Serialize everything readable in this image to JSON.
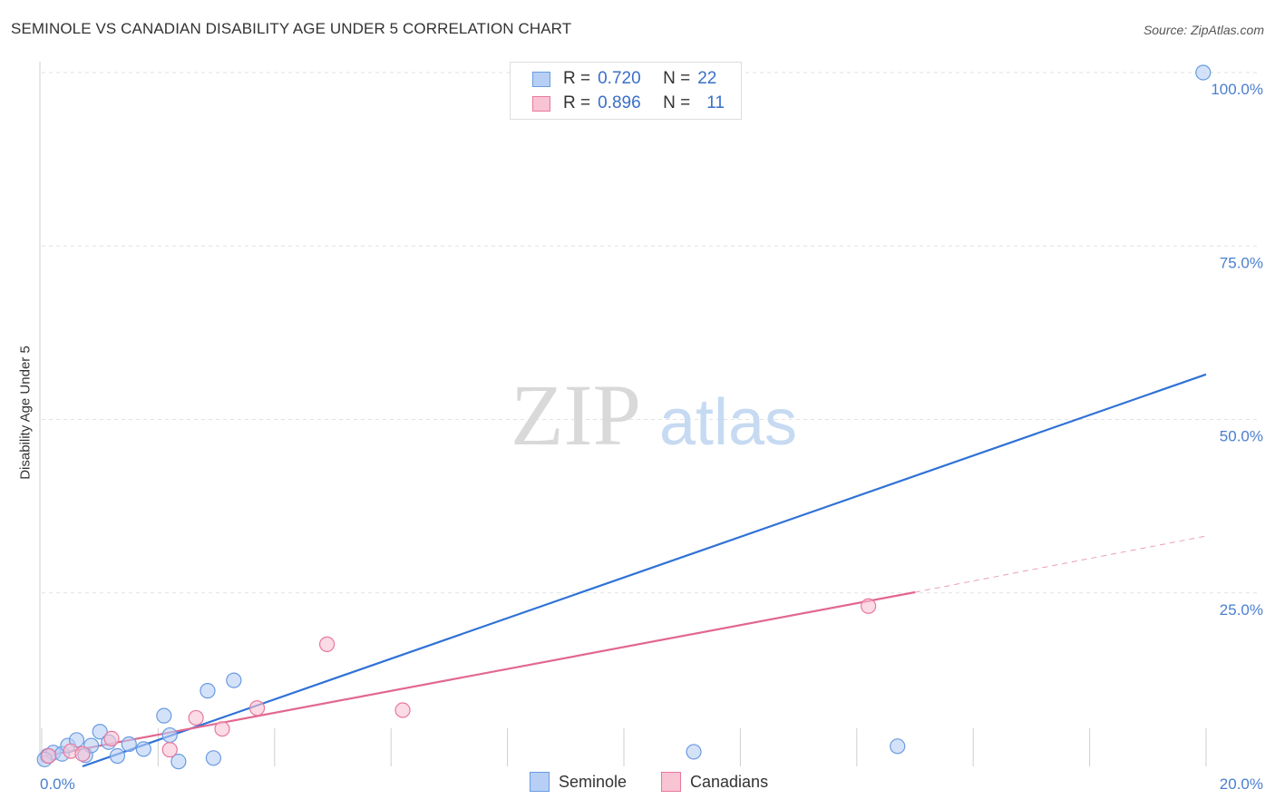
{
  "chart_data": {
    "type": "scatter",
    "title": "SEMINOLE VS CANADIAN DISABILITY AGE UNDER 5 CORRELATION CHART",
    "source": "Source: ZipAtlas.com",
    "xlabel": "",
    "ylabel": "Disability Age Under 5",
    "xlim": [
      0,
      20
    ],
    "ylim": [
      0,
      100
    ],
    "x_tick_labels": [
      "0.0%",
      "20.0%"
    ],
    "y_tick_labels": [
      "100.0%",
      "75.0%",
      "50.0%",
      "25.0%"
    ],
    "y_ticks": [
      100,
      75,
      50,
      25
    ],
    "watermark": {
      "zip": "ZIP",
      "atlas": "atlas"
    },
    "legend": {
      "r_label": "R =",
      "n_label": "N =",
      "rows": [
        {
          "name": "Seminole",
          "r": "0.720",
          "n": "22"
        },
        {
          "name": "Canadians",
          "r": "0.896",
          "n": "11"
        }
      ]
    },
    "series": [
      {
        "name": "Seminole",
        "color": "#6a9be0",
        "fill": "#b7cff5",
        "trend": {
          "x0": 0.7,
          "y0": 0.0,
          "x1": 20.0,
          "y1": 56.5
        },
        "points": [
          {
            "x": 0.1,
            "y": 1.5
          },
          {
            "x": 0.2,
            "y": 2.0
          },
          {
            "x": 0.35,
            "y": 1.8
          },
          {
            "x": 0.45,
            "y": 3.0
          },
          {
            "x": 0.6,
            "y": 3.8
          },
          {
            "x": 0.75,
            "y": 1.6
          },
          {
            "x": 0.85,
            "y": 3.0
          },
          {
            "x": 1.0,
            "y": 5.0
          },
          {
            "x": 1.15,
            "y": 3.5
          },
          {
            "x": 1.3,
            "y": 1.5
          },
          {
            "x": 1.5,
            "y": 3.2
          },
          {
            "x": 1.75,
            "y": 2.5
          },
          {
            "x": 2.1,
            "y": 7.3
          },
          {
            "x": 2.2,
            "y": 4.5
          },
          {
            "x": 2.35,
            "y": 0.7
          },
          {
            "x": 2.85,
            "y": 10.9
          },
          {
            "x": 2.95,
            "y": 1.2
          },
          {
            "x": 3.3,
            "y": 12.4
          },
          {
            "x": 11.2,
            "y": 2.1
          },
          {
            "x": 14.7,
            "y": 2.9
          },
          {
            "x": 19.95,
            "y": 100.0
          },
          {
            "x": 0.05,
            "y": 1.0
          }
        ]
      },
      {
        "name": "Canadians",
        "color": "#e8789e",
        "fill": "#f8c3d3",
        "trend": {
          "x0": 0.0,
          "y0": 1.4,
          "x1": 15.0,
          "y1": 25.1
        },
        "trend_dashed": {
          "x0": 15.0,
          "y0": 25.1,
          "x1": 20.0,
          "y1": 33.2
        },
        "points": [
          {
            "x": 0.12,
            "y": 1.5
          },
          {
            "x": 0.5,
            "y": 2.2
          },
          {
            "x": 0.7,
            "y": 1.8
          },
          {
            "x": 1.2,
            "y": 4.0
          },
          {
            "x": 2.2,
            "y": 2.4
          },
          {
            "x": 2.65,
            "y": 7.0
          },
          {
            "x": 3.1,
            "y": 5.4
          },
          {
            "x": 3.7,
            "y": 8.4
          },
          {
            "x": 4.9,
            "y": 17.6
          },
          {
            "x": 6.2,
            "y": 8.1
          },
          {
            "x": 14.2,
            "y": 23.1
          }
        ]
      }
    ]
  }
}
